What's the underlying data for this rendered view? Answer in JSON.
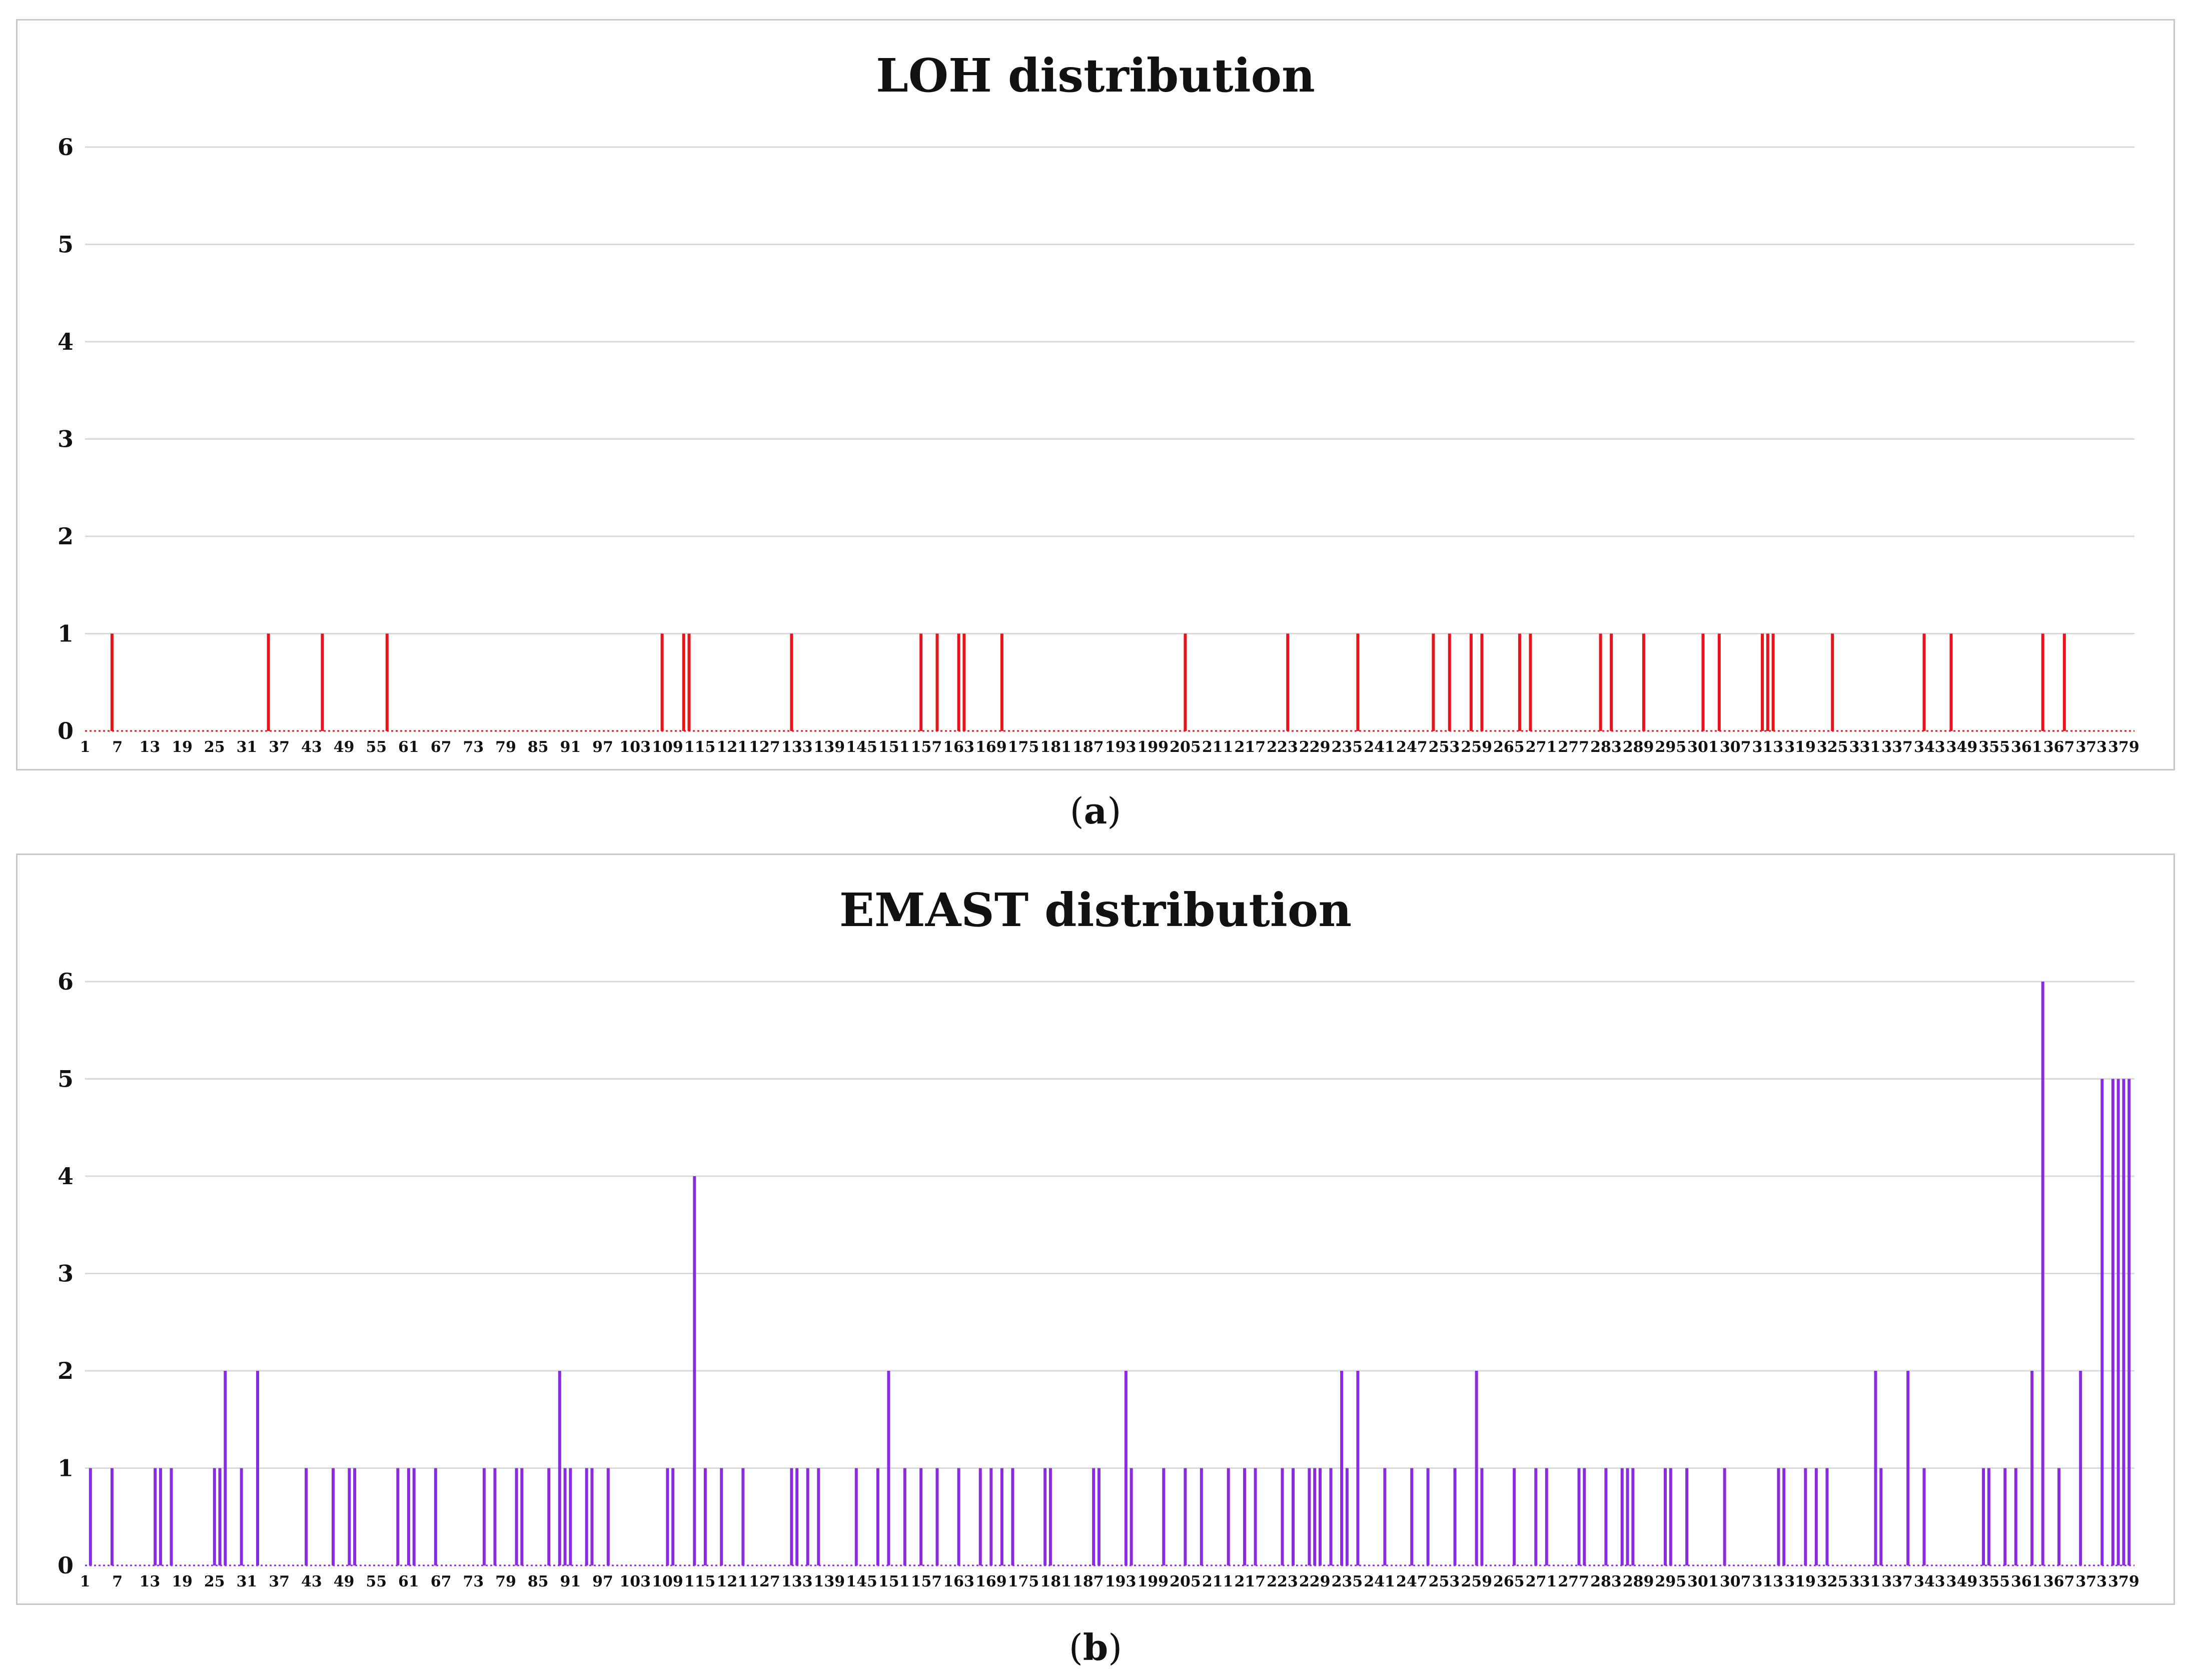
{
  "chart_data": [
    {
      "type": "bar",
      "title": "LOH distribution",
      "caption_label": "a",
      "xlabel": "",
      "ylabel": "",
      "ylim": [
        0,
        6
      ],
      "yticks": [
        0,
        1,
        2,
        3,
        4,
        5,
        6
      ],
      "x_range": [
        1,
        381
      ],
      "xticks": [
        1,
        7,
        13,
        19,
        25,
        31,
        37,
        43,
        49,
        55,
        61,
        67,
        73,
        79,
        85,
        91,
        97,
        103,
        109,
        115,
        121,
        127,
        133,
        139,
        145,
        151,
        157,
        163,
        169,
        175,
        181,
        187,
        193,
        199,
        205,
        211,
        217,
        223,
        229,
        235,
        241,
        247,
        253,
        259,
        265,
        271,
        277,
        283,
        289,
        295,
        301,
        307,
        313,
        319,
        325,
        331,
        337,
        343,
        349,
        355,
        361,
        367,
        373,
        379
      ],
      "bar_color": "#e8141b",
      "series": [
        {
          "name": "LOH",
          "x": [
            6,
            35,
            45,
            57,
            108,
            112,
            113,
            132,
            156,
            159,
            163,
            164,
            171,
            205,
            224,
            237,
            251,
            254,
            258,
            260,
            267,
            269,
            282,
            284,
            290,
            301,
            304,
            312,
            313,
            314,
            325,
            342,
            347,
            364,
            368
          ],
          "values": [
            1,
            1,
            1,
            1,
            1,
            1,
            1,
            1,
            1,
            1,
            1,
            1,
            1,
            1,
            1,
            1,
            1,
            1,
            1,
            1,
            1,
            1,
            1,
            1,
            1,
            1,
            1,
            1,
            1,
            1,
            1,
            1,
            1,
            1,
            1
          ]
        }
      ]
    },
    {
      "type": "bar",
      "title": "EMAST distribution",
      "caption_label": "b",
      "xlabel": "",
      "ylabel": "",
      "ylim": [
        0,
        6
      ],
      "yticks": [
        0,
        1,
        2,
        3,
        4,
        5,
        6
      ],
      "x_range": [
        1,
        381
      ],
      "xticks": [
        1,
        7,
        13,
        19,
        25,
        31,
        37,
        43,
        49,
        55,
        61,
        67,
        73,
        79,
        85,
        91,
        97,
        103,
        109,
        115,
        121,
        127,
        133,
        139,
        145,
        151,
        157,
        163,
        169,
        175,
        181,
        187,
        193,
        199,
        205,
        211,
        217,
        223,
        229,
        235,
        241,
        247,
        253,
        259,
        265,
        271,
        277,
        283,
        289,
        295,
        301,
        307,
        313,
        319,
        325,
        331,
        337,
        343,
        349,
        355,
        361,
        367,
        373,
        379
      ],
      "bar_color": "#8a2be2",
      "series": [
        {
          "name": "EMAST",
          "x": [
            2,
            6,
            14,
            15,
            17,
            25,
            26,
            27,
            30,
            33,
            42,
            47,
            50,
            51,
            59,
            61,
            62,
            66,
            75,
            77,
            81,
            82,
            87,
            89,
            90,
            91,
            94,
            95,
            98,
            109,
            110,
            114,
            116,
            119,
            123,
            132,
            133,
            135,
            137,
            144,
            148,
            150,
            153,
            156,
            159,
            163,
            167,
            169,
            171,
            173,
            179,
            180,
            188,
            189,
            194,
            195,
            201,
            205,
            208,
            213,
            216,
            218,
            223,
            225,
            228,
            229,
            230,
            232,
            234,
            235,
            237,
            242,
            247,
            250,
            255,
            259,
            260,
            266,
            270,
            272,
            278,
            279,
            283,
            286,
            287,
            288,
            294,
            295,
            298,
            305,
            315,
            316,
            320,
            322,
            324,
            333,
            334,
            339,
            342,
            353,
            354,
            357,
            359,
            362,
            364,
            367,
            371,
            375,
            377,
            378,
            379,
            380
          ],
          "values": [
            1,
            1,
            1,
            1,
            1,
            1,
            1,
            2,
            1,
            2,
            1,
            1,
            1,
            1,
            1,
            1,
            1,
            1,
            1,
            1,
            1,
            1,
            1,
            2,
            1,
            1,
            1,
            1,
            1,
            1,
            1,
            4,
            1,
            1,
            1,
            1,
            1,
            1,
            1,
            1,
            1,
            2,
            1,
            1,
            1,
            1,
            1,
            1,
            1,
            1,
            1,
            1,
            1,
            1,
            2,
            1,
            1,
            1,
            1,
            1,
            1,
            1,
            1,
            1,
            1,
            1,
            1,
            1,
            2,
            1,
            2,
            1,
            1,
            1,
            1,
            2,
            1,
            1,
            1,
            1,
            1,
            1,
            1,
            1,
            1,
            1,
            1,
            1,
            1,
            1,
            1,
            1,
            1,
            1,
            1,
            2,
            1,
            2,
            1,
            1,
            1,
            1,
            1,
            2,
            6,
            1,
            2,
            5,
            5,
            5,
            5,
            5
          ]
        }
      ]
    }
  ]
}
